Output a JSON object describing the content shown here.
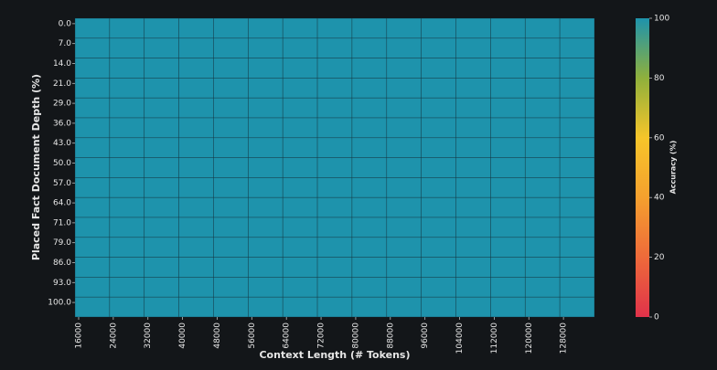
{
  "chart_data": {
    "type": "heatmap",
    "x_label": "Context Length (# Tokens)",
    "y_label": "Placed Fact Document Depth (%)",
    "x": [
      16000,
      24000,
      32000,
      40000,
      48000,
      56000,
      64000,
      72000,
      80000,
      88000,
      96000,
      104000,
      112000,
      120000,
      128000
    ],
    "y": [
      "0.0",
      "7.0",
      "14.0",
      "21.0",
      "29.0",
      "36.0",
      "43.0",
      "50.0",
      "57.0",
      "64.0",
      "71.0",
      "79.0",
      "86.0",
      "93.0",
      "100.0"
    ],
    "values": [
      [
        100,
        100,
        100,
        100,
        100,
        100,
        100,
        100,
        100,
        100,
        100,
        100,
        100,
        100,
        100
      ],
      [
        100,
        100,
        100,
        100,
        100,
        100,
        100,
        100,
        100,
        100,
        100,
        100,
        100,
        100,
        100
      ],
      [
        100,
        100,
        100,
        100,
        100,
        100,
        100,
        100,
        100,
        100,
        100,
        100,
        100,
        100,
        100
      ],
      [
        100,
        100,
        100,
        100,
        100,
        100,
        100,
        100,
        100,
        100,
        100,
        100,
        100,
        100,
        100
      ],
      [
        100,
        100,
        100,
        100,
        100,
        100,
        100,
        100,
        100,
        100,
        100,
        100,
        100,
        100,
        100
      ],
      [
        100,
        100,
        100,
        100,
        100,
        100,
        100,
        100,
        100,
        100,
        100,
        100,
        100,
        100,
        100
      ],
      [
        100,
        100,
        100,
        100,
        100,
        100,
        100,
        100,
        100,
        100,
        100,
        100,
        100,
        100,
        100
      ],
      [
        100,
        100,
        100,
        100,
        100,
        100,
        100,
        100,
        100,
        100,
        100,
        100,
        100,
        100,
        100
      ],
      [
        100,
        100,
        100,
        100,
        100,
        100,
        100,
        100,
        100,
        100,
        100,
        100,
        100,
        100,
        100
      ],
      [
        100,
        100,
        100,
        100,
        100,
        100,
        100,
        100,
        100,
        100,
        100,
        100,
        100,
        100,
        100
      ],
      [
        100,
        100,
        100,
        100,
        100,
        100,
        100,
        100,
        100,
        100,
        100,
        100,
        100,
        100,
        100
      ],
      [
        100,
        100,
        100,
        100,
        100,
        100,
        100,
        100,
        100,
        100,
        100,
        100,
        100,
        100,
        100
      ],
      [
        100,
        100,
        100,
        100,
        100,
        100,
        100,
        100,
        100,
        100,
        100,
        100,
        100,
        100,
        100
      ],
      [
        100,
        100,
        100,
        100,
        100,
        100,
        100,
        100,
        100,
        100,
        100,
        100,
        100,
        100,
        100
      ],
      [
        100,
        100,
        100,
        100,
        100,
        100,
        100,
        100,
        100,
        100,
        100,
        100,
        100,
        100,
        100
      ]
    ],
    "colorbar_label": "Accuracy (%)",
    "clim": [
      0,
      100
    ],
    "cticks": [
      0,
      20,
      40,
      60,
      80,
      100
    ],
    "colorscale": [
      "#e0324a",
      "#ee6a3a",
      "#f5a02e",
      "#f6c52a",
      "#8fb03c",
      "#1e93ac"
    ]
  }
}
